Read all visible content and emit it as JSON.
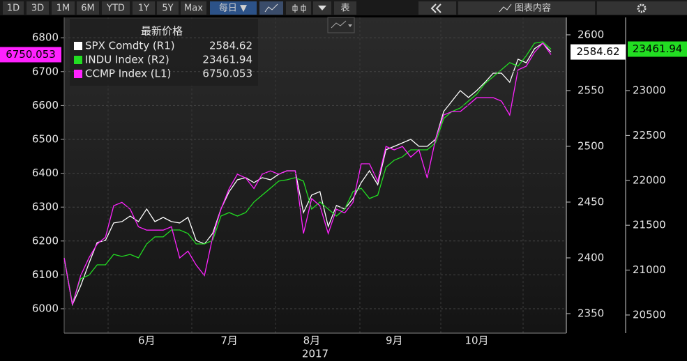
{
  "toolbar": {
    "periods": [
      "1D",
      "3D",
      "1M",
      "6M",
      "YTD",
      "1Y",
      "5Y",
      "Max"
    ],
    "frequency": "每日 ▼",
    "table": "表",
    "chart_content": "图表内容"
  },
  "chart_data": {
    "type": "line",
    "legend_title": "最新价格",
    "x_label": "2017",
    "categories": [
      null,
      null,
      null,
      null,
      null,
      null,
      null,
      null,
      null,
      null,
      "6月",
      null,
      null,
      null,
      null,
      null,
      null,
      null,
      null,
      null,
      "7月",
      null,
      null,
      null,
      null,
      null,
      null,
      null,
      null,
      null,
      "8月",
      null,
      null,
      null,
      null,
      null,
      null,
      null,
      null,
      null,
      "9月",
      null,
      null,
      null,
      null,
      null,
      null,
      null,
      null,
      null,
      "10月",
      null,
      null,
      null,
      null,
      null,
      null,
      null,
      null,
      null
    ],
    "ylim": [
      5928,
      6860
    ],
    "yticks": [
      6000,
      6100,
      6200,
      6300,
      6400,
      6500,
      6600,
      6700,
      6800
    ],
    "y2lim": [
      2332.5,
      2615.6
    ],
    "y2ticks": [
      2350,
      2400,
      2450,
      2500,
      2550,
      2600
    ],
    "y3lim": [
      20298,
      23815
    ],
    "y3ticks": [
      20500,
      21000,
      21500,
      22000,
      22500,
      23000
    ],
    "grid": true,
    "series": [
      {
        "name": "SPX Comdty (R1)",
        "color": "#ffffff",
        "axis": "y2",
        "values": [
          2400,
          2358.1,
          2375,
          2395,
          2413.8,
          2415.6,
          2431.3,
          2432.5,
          2437.5,
          2432.5,
          2443.8,
          2432.5,
          2436.3,
          2432.5,
          2431.3,
          2436.3,
          2415.6,
          2412.5,
          2421.9,
          2443.8,
          2459.4,
          2470,
          2471.9,
          2467.5,
          2471.9,
          2470,
          2475,
          2478.1,
          2478.1,
          2440.6,
          2456.3,
          2459.4,
          2428.1,
          2446.9,
          2443.8,
          2453.1,
          2467.5,
          2478.1,
          2465.6,
          2496.9,
          2500,
          2503.1,
          2506.3,
          2500,
          2500,
          2506.3,
          2531.3,
          2540.6,
          2550,
          2543.8,
          2550,
          2557.5,
          2565.6,
          2565.6,
          2557.5,
          2578.1,
          2575,
          2587.5,
          2592.5,
          2584.62
        ]
      },
      {
        "name": "INDU Index (R2)",
        "color": "#22dd22",
        "axis": "y3",
        "values": [
          21137,
          20632,
          20904,
          20943,
          21059,
          21059,
          21175,
          21152,
          21175,
          21137,
          21292,
          21370,
          21370,
          21447,
          21447,
          21408,
          21292,
          21292,
          21331,
          21602,
          21641,
          21602,
          21641,
          21758,
          21835,
          21913,
          21991,
          22006,
          22030,
          21991,
          21680,
          21758,
          21680,
          21602,
          21680,
          21874,
          21913,
          21797,
          21835,
          22146,
          22224,
          22262,
          22340,
          22340,
          22340,
          22418,
          22689,
          22767,
          22806,
          22884,
          22961,
          23078,
          23155,
          23233,
          23311,
          23272,
          23388,
          23528,
          23543,
          23461.94
        ]
      },
      {
        "name": "CCMP Index (L1)",
        "color": "#ff22ff",
        "axis": "y",
        "values": [
          6150,
          6012,
          6098,
          6150,
          6191,
          6211,
          6304,
          6314,
          6294,
          6242,
          6232,
          6232,
          6232,
          6242,
          6150,
          6170,
          6129,
          6098,
          6211,
          6294,
          6355,
          6397,
          6386,
          6355,
          6397,
          6407,
          6397,
          6407,
          6407,
          6222,
          6325,
          6304,
          6222,
          6294,
          6283,
          6314,
          6428,
          6428,
          6376,
          6479,
          6469,
          6479,
          6448,
          6469,
          6386,
          6500,
          6572,
          6582,
          6582,
          6602,
          6623,
          6623,
          6623,
          6613,
          6572,
          6705,
          6716,
          6757,
          6784,
          6750.053
        ]
      }
    ]
  }
}
